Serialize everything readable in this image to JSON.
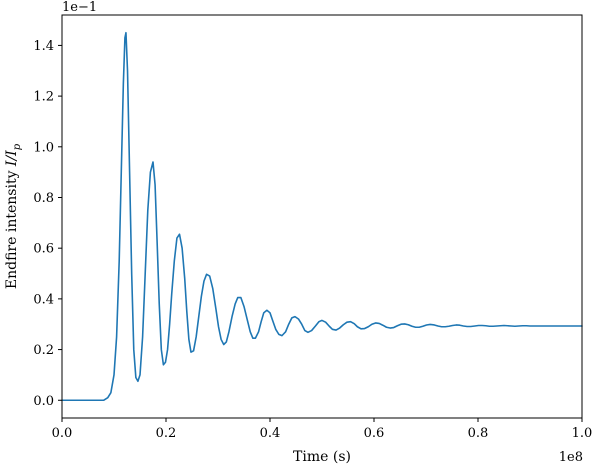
{
  "chart_data": {
    "type": "line",
    "xlabel": "Time (s)",
    "ylabel": "Endfire intensity I/I_p",
    "x_offset_label": "1e8",
    "y_offset_label": "1e−1",
    "xlim": [
      0.0,
      1.0
    ],
    "ylim": [
      -0.07,
      1.52
    ],
    "x_ticks": [
      0.0,
      0.2,
      0.4,
      0.6,
      0.8,
      1.0
    ],
    "x_tick_labels": [
      "0.0",
      "0.2",
      "0.4",
      "0.6",
      "0.8",
      "1.0"
    ],
    "y_ticks": [
      0.0,
      0.2,
      0.4,
      0.6,
      0.8,
      1.0,
      1.2,
      1.4
    ],
    "y_tick_labels": [
      "0.0",
      "0.2",
      "0.4",
      "0.6",
      "0.8",
      "1.0",
      "1.2",
      "1.4"
    ],
    "grid": false,
    "legend": "none",
    "series": [
      {
        "color": "#1f77b4",
        "x": [
          0.0,
          0.08,
          0.088,
          0.094,
          0.1,
          0.105,
          0.11,
          0.114,
          0.118,
          0.121,
          0.123,
          0.126,
          0.13,
          0.134,
          0.138,
          0.142,
          0.146,
          0.15,
          0.155,
          0.16,
          0.165,
          0.17,
          0.175,
          0.179,
          0.183,
          0.187,
          0.191,
          0.195,
          0.199,
          0.203,
          0.207,
          0.211,
          0.216,
          0.221,
          0.226,
          0.231,
          0.236,
          0.24,
          0.244,
          0.248,
          0.253,
          0.258,
          0.263,
          0.268,
          0.273,
          0.278,
          0.284,
          0.29,
          0.296,
          0.301,
          0.306,
          0.311,
          0.316,
          0.321,
          0.327,
          0.333,
          0.338,
          0.344,
          0.35,
          0.356,
          0.362,
          0.367,
          0.372,
          0.378,
          0.383,
          0.388,
          0.394,
          0.4,
          0.405,
          0.411,
          0.417,
          0.423,
          0.43,
          0.436,
          0.442,
          0.448,
          0.455,
          0.461,
          0.467,
          0.473,
          0.48,
          0.487,
          0.494,
          0.5,
          0.507,
          0.514,
          0.52,
          0.527,
          0.534,
          0.541,
          0.548,
          0.555,
          0.562,
          0.568,
          0.575,
          0.582,
          0.589,
          0.596,
          0.603,
          0.61,
          0.617,
          0.624,
          0.631,
          0.638,
          0.645,
          0.652,
          0.659,
          0.666,
          0.673,
          0.68,
          0.687,
          0.694,
          0.701,
          0.708,
          0.716,
          0.723,
          0.73,
          0.737,
          0.744,
          0.751,
          0.758,
          0.765,
          0.772,
          0.779,
          0.786,
          0.794,
          0.801,
          0.808,
          0.815,
          0.822,
          0.829,
          0.836,
          0.843,
          0.85,
          0.857,
          0.864,
          0.871,
          0.878,
          0.886,
          0.893,
          0.9,
          0.92,
          0.94,
          0.96,
          0.98,
          1.0
        ],
        "y": [
          0.0,
          0.0,
          0.01,
          0.03,
          0.1,
          0.25,
          0.55,
          0.9,
          1.25,
          1.43,
          1.45,
          1.3,
          0.9,
          0.5,
          0.2,
          0.09,
          0.075,
          0.1,
          0.25,
          0.5,
          0.75,
          0.9,
          0.94,
          0.85,
          0.62,
          0.38,
          0.2,
          0.14,
          0.15,
          0.2,
          0.3,
          0.42,
          0.55,
          0.64,
          0.655,
          0.6,
          0.48,
          0.35,
          0.24,
          0.19,
          0.195,
          0.25,
          0.33,
          0.41,
          0.47,
          0.497,
          0.49,
          0.44,
          0.36,
          0.29,
          0.24,
          0.22,
          0.23,
          0.27,
          0.33,
          0.38,
          0.405,
          0.405,
          0.37,
          0.32,
          0.27,
          0.245,
          0.245,
          0.27,
          0.31,
          0.345,
          0.355,
          0.345,
          0.315,
          0.28,
          0.26,
          0.255,
          0.27,
          0.3,
          0.325,
          0.33,
          0.32,
          0.3,
          0.275,
          0.268,
          0.275,
          0.292,
          0.31,
          0.315,
          0.308,
          0.292,
          0.28,
          0.277,
          0.285,
          0.298,
          0.308,
          0.31,
          0.302,
          0.29,
          0.282,
          0.283,
          0.29,
          0.3,
          0.305,
          0.303,
          0.296,
          0.288,
          0.285,
          0.287,
          0.294,
          0.3,
          0.301,
          0.298,
          0.292,
          0.288,
          0.288,
          0.292,
          0.297,
          0.299,
          0.297,
          0.293,
          0.29,
          0.29,
          0.292,
          0.295,
          0.297,
          0.296,
          0.293,
          0.291,
          0.291,
          0.293,
          0.295,
          0.295,
          0.294,
          0.292,
          0.292,
          0.293,
          0.294,
          0.295,
          0.294,
          0.293,
          0.292,
          0.293,
          0.294,
          0.294,
          0.293,
          0.293,
          0.293,
          0.293,
          0.293,
          0.293
        ]
      }
    ]
  }
}
